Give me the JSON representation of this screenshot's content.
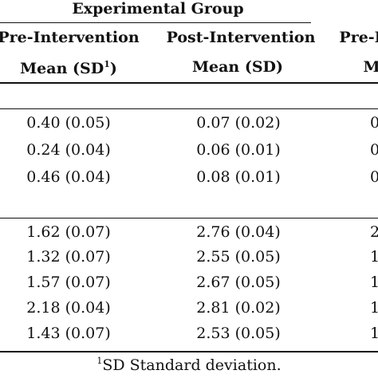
{
  "table": {
    "group_title": "Experimental Group",
    "columns": [
      {
        "period": "Pre-Intervention",
        "stat_label": "Mean (SD",
        "stat_sup": "1",
        "stat_close": ")"
      },
      {
        "period": "Post-Intervention",
        "stat_label": "Mean (SD)"
      },
      {
        "period": "Pre-I",
        "stat_label": "M"
      }
    ],
    "section1_rows": [
      {
        "pre": "0.40 (0.05)",
        "post": "0.07 (0.02)",
        "partial": "0"
      },
      {
        "pre": "0.24 (0.04)",
        "post": "0.06 (0.01)",
        "partial": "0"
      },
      {
        "pre": "0.46 (0.04)",
        "post": "0.08 (0.01)",
        "partial": "0"
      }
    ],
    "section2_rows": [
      {
        "pre": "1.62 (0.07)",
        "post": "2.76 (0.04)",
        "partial": "2"
      },
      {
        "pre": "1.32 (0.07)",
        "post": "2.55 (0.05)",
        "partial": "1"
      },
      {
        "pre": "1.57 (0.07)",
        "post": "2.67 (0.05)",
        "partial": "1"
      },
      {
        "pre": "2.18 (0.04)",
        "post": "2.81 (0.02)",
        "partial": "1"
      },
      {
        "pre": "1.43 (0.07)",
        "post": "2.53 (0.05)",
        "partial": "1"
      }
    ],
    "footnote": {
      "sup": "1",
      "text": "SD Standard deviation."
    }
  }
}
